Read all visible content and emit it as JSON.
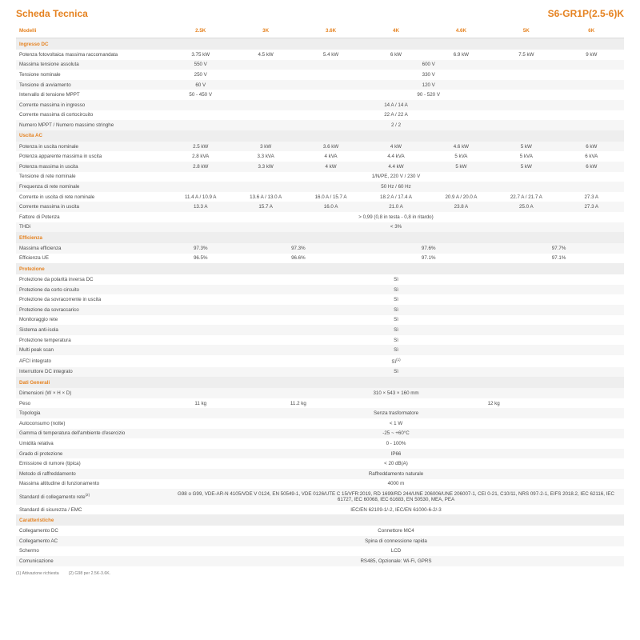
{
  "header": {
    "title_left": "Scheda Tecnica",
    "title_right": "S6-GR1P(2.5-6)K"
  },
  "columns": [
    "Modelli",
    "2.5K",
    "3K",
    "3.6K",
    "4K",
    "4.6K",
    "5K",
    "6K"
  ],
  "sections": [
    {
      "name": "Ingresso DC",
      "rows": [
        {
          "label": "Potenza fotovoltaica massima raccomandata",
          "cells": [
            "3.75 kW",
            "4.5 kW",
            "5.4 kW",
            "6 kW",
            "6.9 kW",
            "7.5 kW",
            "9 kW"
          ]
        },
        {
          "label": "Massima tensione assoluta",
          "cells": [
            {
              "v": "550 V",
              "span": 1
            },
            {
              "v": "600 V",
              "span": 6
            }
          ]
        },
        {
          "label": "Tensione nominale",
          "cells": [
            {
              "v": "250 V",
              "span": 1
            },
            {
              "v": "330 V",
              "span": 6
            }
          ]
        },
        {
          "label": "Tensione di avviamento",
          "cells": [
            {
              "v": "60 V",
              "span": 1
            },
            {
              "v": "120 V",
              "span": 6
            }
          ]
        },
        {
          "label": "Intervallo di tensione MPPT",
          "cells": [
            {
              "v": "50 - 450 V",
              "span": 1
            },
            {
              "v": "90 - 520 V",
              "span": 6
            }
          ]
        },
        {
          "label": "Corrente massima in ingresso",
          "cells": [
            {
              "v": "14 A / 14 A",
              "span": 7
            }
          ]
        },
        {
          "label": "Corrente massima di cortocircuito",
          "cells": [
            {
              "v": "22 A / 22 A",
              "span": 7
            }
          ]
        },
        {
          "label": "Numero MPPT / Numero massimo stringhe",
          "cells": [
            {
              "v": "2 / 2",
              "span": 7
            }
          ]
        }
      ]
    },
    {
      "name": "Uscita AC",
      "rows": [
        {
          "label": "Potenza in uscita nominale",
          "cells": [
            "2.5 kW",
            "3 kW",
            "3.6 kW",
            "4 kW",
            "4.6 kW",
            "5 kW",
            "6 kW"
          ]
        },
        {
          "label": "Potenza apparente massima in uscita",
          "cells": [
            "2.8 kVA",
            "3.3 kVA",
            "4 kVA",
            "4.4 kVA",
            "5 kVA",
            "5 kVA",
            "6 kVA"
          ]
        },
        {
          "label": "Potenza massima in uscita",
          "cells": [
            "2.8 kW",
            "3.3 kW",
            "4 kW",
            "4.4 kW",
            "5 kW",
            "5 kW",
            "6 kW"
          ]
        },
        {
          "label": "Tensione di rete nominale",
          "cells": [
            {
              "v": "1/N/PE, 220 V / 230 V",
              "span": 7
            }
          ]
        },
        {
          "label": "Frequenza di rete nominale",
          "cells": [
            {
              "v": "50 Hz / 60 Hz",
              "span": 7
            }
          ]
        },
        {
          "label": "Corrente in uscita di rete nominale",
          "cells": [
            "11.4 A / 10.9 A",
            "13.6 A / 13.0 A",
            "16.0 A / 15.7 A",
            "18.2 A / 17.4 A",
            "20.9 A / 20.0 A",
            "22.7 A / 21.7 A",
            "27.3 A"
          ]
        },
        {
          "label": "Corrente massima in uscita",
          "cells": [
            "13.3 A",
            "15.7 A",
            "16.0 A",
            "21.0 A",
            "23.8 A",
            "25.0 A",
            "27.3 A"
          ]
        },
        {
          "label": "Fattore di Potenza",
          "cells": [
            {
              "v": "> 0,99 (0,8 in testa - 0,8 in ritardo)",
              "span": 7
            }
          ]
        },
        {
          "label": "THDi",
          "cells": [
            {
              "v": "< 3%",
              "span": 7
            }
          ]
        }
      ]
    },
    {
      "name": "Efficienza",
      "rows": [
        {
          "label": "Massima efficienza",
          "cells": [
            {
              "v": "97.3%",
              "span": 1
            },
            {
              "v": "97.3%",
              "span": 2
            },
            {
              "v": "97.6%",
              "span": 2
            },
            {
              "v": "97.7%",
              "span": 2
            }
          ]
        },
        {
          "label": "Efficienza UE",
          "cells": [
            {
              "v": "96.5%",
              "span": 1
            },
            {
              "v": "96.6%",
              "span": 2
            },
            {
              "v": "97.1%",
              "span": 2
            },
            {
              "v": "97.1%",
              "span": 2
            }
          ]
        }
      ]
    },
    {
      "name": "Protezione",
      "rows": [
        {
          "label": "Protezione da polarità inversa DC",
          "cells": [
            {
              "v": "Sì",
              "span": 7
            }
          ]
        },
        {
          "label": "Protezione da corto circuito",
          "cells": [
            {
              "v": "Sì",
              "span": 7
            }
          ]
        },
        {
          "label": "Protezione da sovracorrente in uscita",
          "cells": [
            {
              "v": "Sì",
              "span": 7
            }
          ]
        },
        {
          "label": "Protezione da sovraccarico",
          "cells": [
            {
              "v": "Sì",
              "span": 7
            }
          ]
        },
        {
          "label": "Monitoraggio rete",
          "cells": [
            {
              "v": "Sì",
              "span": 7
            }
          ]
        },
        {
          "label": "Sistema anti-isola",
          "cells": [
            {
              "v": "Sì",
              "span": 7
            }
          ]
        },
        {
          "label": "Protezione temperatura",
          "cells": [
            {
              "v": "Sì",
              "span": 7
            }
          ]
        },
        {
          "label": "Multi peak scan",
          "cells": [
            {
              "v": "Sì",
              "span": 7
            }
          ]
        },
        {
          "label": "AFCI integrato",
          "cells": [
            {
              "v": "Sì",
              "span": 7,
              "sup": "(1)"
            }
          ]
        },
        {
          "label": "Interruttore DC integrato",
          "cells": [
            {
              "v": "Sì",
              "span": 7
            }
          ]
        }
      ]
    },
    {
      "name": "Dati Generali",
      "rows": [
        {
          "label": "Dimensioni (W × H × D)",
          "cells": [
            {
              "v": "310 × 543 × 160 mm",
              "span": 7
            }
          ]
        },
        {
          "label": "Peso",
          "cells": [
            {
              "v": "11 kg",
              "span": 1
            },
            {
              "v": "11.2 kg",
              "span": 2
            },
            {
              "v": "12 kg",
              "span": 4
            }
          ]
        },
        {
          "label": "Topologia",
          "cells": [
            {
              "v": "Senza trasformatore",
              "span": 7
            }
          ]
        },
        {
          "label": "Autoconsumo (notte)",
          "cells": [
            {
              "v": "< 1 W",
              "span": 7
            }
          ]
        },
        {
          "label": "Gamma di temperatura dell'ambiente d'esercizio",
          "cells": [
            {
              "v": "-25 ~ +60°C",
              "span": 7
            }
          ]
        },
        {
          "label": "Umidità relativa",
          "cells": [
            {
              "v": "0 - 100%",
              "span": 7
            }
          ]
        },
        {
          "label": "Grado di protezione",
          "cells": [
            {
              "v": "IP66",
              "span": 7
            }
          ]
        },
        {
          "label": "Emissione di rumore (tipica)",
          "cells": [
            {
              "v": "< 20 dB(A)",
              "span": 7
            }
          ]
        },
        {
          "label": "Metodo di raffreddamento",
          "cells": [
            {
              "v": "Raffreddamento naturale",
              "span": 7
            }
          ]
        },
        {
          "label": "Massima altitudine di funzionamento",
          "cells": [
            {
              "v": "4000 m",
              "span": 7
            }
          ]
        },
        {
          "label": "Standard di collegamento rete",
          "sup": "(2)",
          "cells": [
            {
              "v": "G98 o G99, VDE-AR-N 4105/VDE V 0124, EN 50549-1, VDE 0126/UTE C 15/VFR:2019, RD 1699/RD 244/UNE 206006/UNE 206007-1, CEI 0-21, C10/11, NRS 097-2-1, EIFS 2018.2, IEC 62116, IEC 61727, IEC 60068, IEC 61683, EN 50530, MEA, PEA",
              "span": 7
            }
          ]
        },
        {
          "label": "Standard di sicurezza / EMC",
          "cells": [
            {
              "v": "IEC/EN 62109-1/-2, IEC/EN 61000-6-2/-3",
              "span": 7
            }
          ]
        }
      ]
    },
    {
      "name": "Caratteristiche",
      "rows": [
        {
          "label": "Collegamento DC",
          "cells": [
            {
              "v": "Connettore MC4",
              "span": 7
            }
          ]
        },
        {
          "label": "Collegamento AC",
          "cells": [
            {
              "v": "Spina di connessione rapida",
              "span": 7
            }
          ]
        },
        {
          "label": "Schermo",
          "cells": [
            {
              "v": "LCD",
              "span": 7
            }
          ]
        },
        {
          "label": "Comunicazione",
          "cells": [
            {
              "v": "RS485, Opzionale: Wi-Fi, GPRS",
              "span": 7
            }
          ]
        }
      ]
    }
  ],
  "footnotes": [
    "(1) Attivazione richiesta",
    "(2) G98 per 2.5K-3.6K."
  ]
}
